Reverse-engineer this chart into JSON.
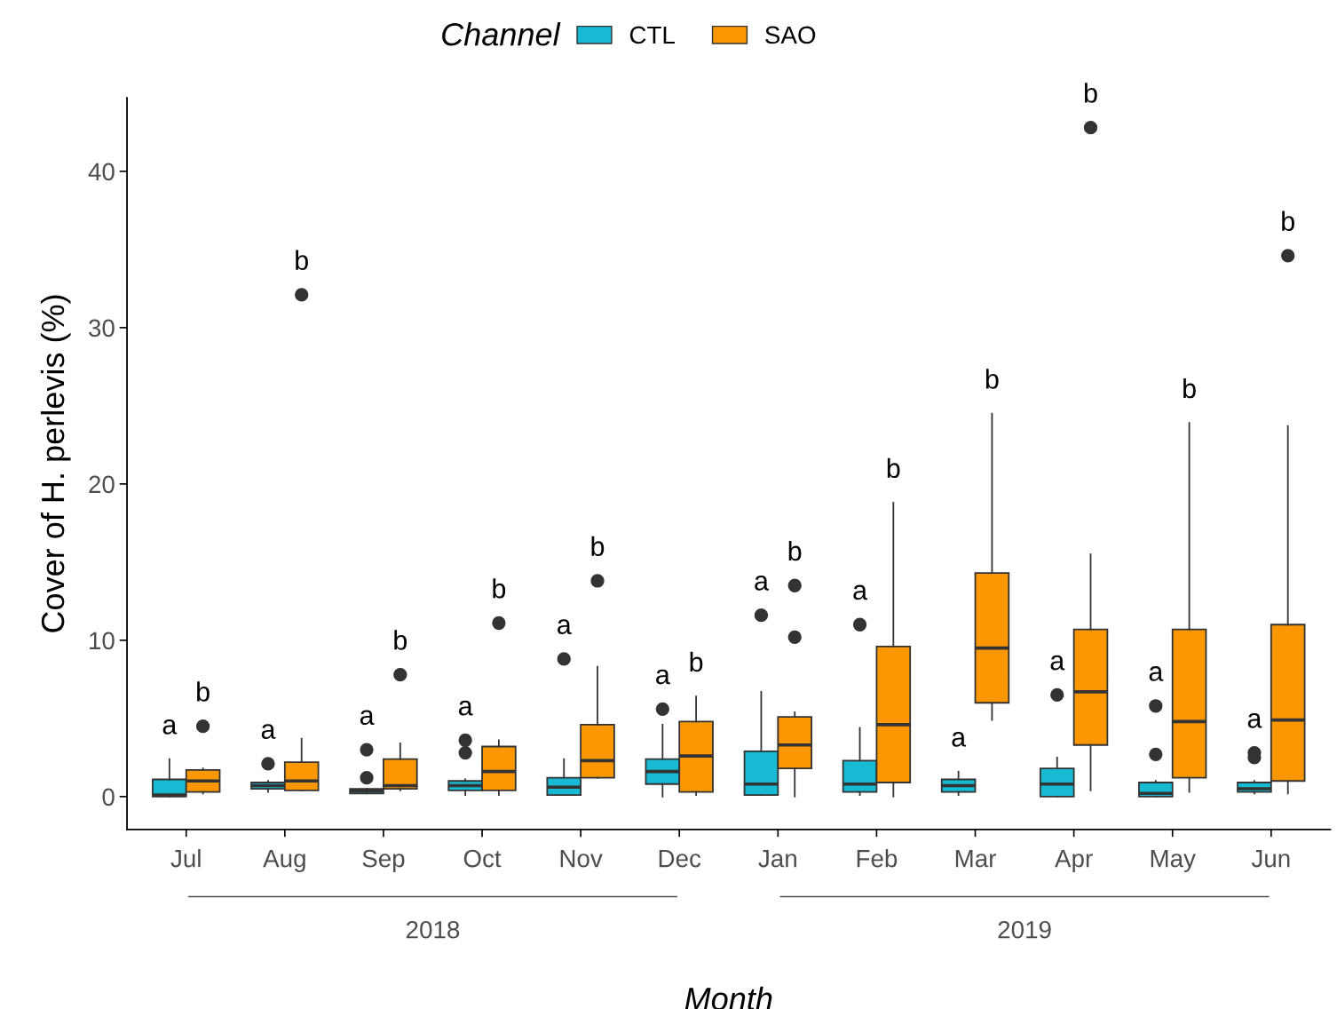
{
  "chart_data": {
    "type": "box",
    "xlabel": "Month",
    "ylabel": "Cover of H. perlevis (%)",
    "legend_title": "Channel",
    "legend": "top",
    "grid": false,
    "categories": [
      "Jul",
      "Aug",
      "Sep",
      "Oct",
      "Nov",
      "Dec",
      "Jan",
      "Feb",
      "Mar",
      "Apr",
      "May",
      "Jun"
    ],
    "ylim": [
      -2.1,
      44.7
    ],
    "yticks": [
      0,
      10,
      20,
      30,
      40
    ],
    "series": [
      {
        "name": "CTL",
        "color": "#17b9d3",
        "boxes": [
          {
            "low": 0,
            "q1": 0,
            "median": 0.1,
            "q3": 1.1,
            "high": 2.4
          },
          {
            "low": 0.3,
            "q1": 0.5,
            "median": 0.7,
            "q3": 0.9,
            "high": 1.0,
            "outliers": [
              2.1
            ]
          },
          {
            "low": 0.2,
            "q1": 0.2,
            "median": 0.35,
            "q3": 0.5,
            "high": 0.5,
            "outliers": [
              1.2,
              3.0
            ]
          },
          {
            "low": 0.1,
            "q1": 0.4,
            "median": 0.7,
            "q3": 1.0,
            "high": 1.1,
            "outliers": [
              2.8,
              3.6
            ]
          },
          {
            "low": 0.1,
            "q1": 0.1,
            "median": 0.6,
            "q3": 1.2,
            "high": 2.4,
            "outliers": [
              8.8
            ]
          },
          {
            "low": 0,
            "q1": 0.8,
            "median": 1.6,
            "q3": 2.4,
            "high": 4.6,
            "outliers": [
              5.6
            ]
          },
          {
            "low": 0.1,
            "q1": 0.1,
            "median": 0.8,
            "q3": 2.9,
            "high": 6.7,
            "outliers": [
              11.6
            ]
          },
          {
            "low": 0.1,
            "q1": 0.3,
            "median": 0.8,
            "q3": 2.3,
            "high": 4.4,
            "outliers": [
              11.0
            ]
          },
          {
            "low": 0.1,
            "q1": 0.3,
            "median": 0.7,
            "q3": 1.1,
            "high": 1.6
          },
          {
            "low": 0,
            "q1": 0,
            "median": 0.8,
            "q3": 1.8,
            "high": 2.5,
            "outliers": [
              6.5
            ]
          },
          {
            "low": 0,
            "q1": 0,
            "median": 0.2,
            "q3": 0.9,
            "high": 1.0,
            "outliers": [
              2.7,
              5.8
            ]
          },
          {
            "low": 0.2,
            "q1": 0.3,
            "median": 0.5,
            "q3": 0.9,
            "high": 1.0,
            "outliers": [
              2.5,
              2.8
            ]
          }
        ]
      },
      {
        "name": "SAO",
        "color": "#fb9703",
        "boxes": [
          {
            "low": 0.2,
            "q1": 0.3,
            "median": 1.0,
            "q3": 1.7,
            "high": 1.8,
            "outliers": [
              4.5
            ]
          },
          {
            "low": 0.4,
            "q1": 0.4,
            "median": 1.0,
            "q3": 2.2,
            "high": 3.7,
            "outliers": [
              32.1
            ]
          },
          {
            "low": 0.4,
            "q1": 0.5,
            "median": 0.7,
            "q3": 2.4,
            "high": 3.4,
            "outliers": [
              7.8
            ]
          },
          {
            "low": 0.1,
            "q1": 0.4,
            "median": 1.6,
            "q3": 3.2,
            "high": 3.6,
            "outliers": [
              11.1
            ]
          },
          {
            "low": 1.2,
            "q1": 1.2,
            "median": 2.3,
            "q3": 4.6,
            "high": 8.3,
            "outliers": [
              13.8
            ]
          },
          {
            "low": 0.1,
            "q1": 0.3,
            "median": 2.6,
            "q3": 4.8,
            "high": 6.4
          },
          {
            "low": 0,
            "q1": 1.8,
            "median": 3.3,
            "q3": 5.1,
            "high": 5.4,
            "outliers": [
              10.2,
              13.5
            ]
          },
          {
            "low": 0,
            "q1": 0.9,
            "median": 4.6,
            "q3": 9.6,
            "high": 18.8
          },
          {
            "low": 4.9,
            "q1": 6.0,
            "median": 9.5,
            "q3": 14.3,
            "high": 24.5
          },
          {
            "low": 0.4,
            "q1": 3.3,
            "median": 6.7,
            "q3": 10.7,
            "high": 15.5,
            "outliers": [
              42.8
            ]
          },
          {
            "low": 0.3,
            "q1": 1.2,
            "median": 4.8,
            "q3": 10.7,
            "high": 23.9
          },
          {
            "low": 0.2,
            "q1": 1.0,
            "median": 4.9,
            "q3": 11.0,
            "high": 23.7,
            "outliers": [
              34.6
            ]
          }
        ]
      }
    ],
    "annotations": [
      "a",
      "b",
      "a",
      "b",
      "a",
      "b",
      "a",
      "b",
      "a",
      "b",
      "a",
      "b",
      "a",
      "b",
      "a",
      "b",
      "a",
      "b",
      "a",
      "b",
      "a",
      "b",
      "a",
      "b",
      "2018",
      "2019"
    ]
  }
}
